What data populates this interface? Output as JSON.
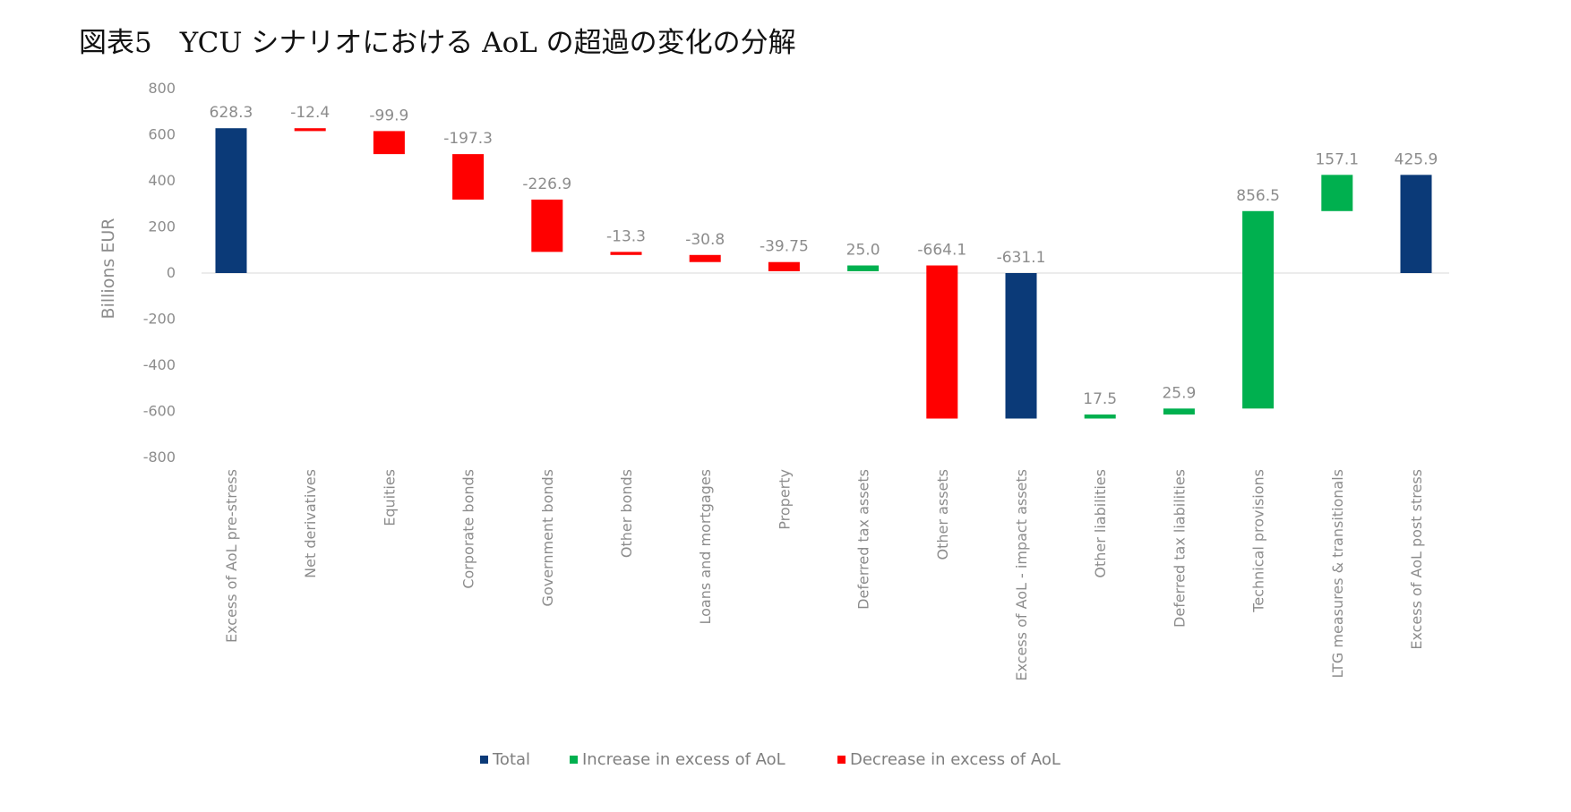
{
  "title": "図表5　YCU シナリオにおける AoL の超過の変化の分解",
  "colors": {
    "total": "#0b3a78",
    "increase": "#00b04f",
    "decrease": "#ff0000",
    "axis_text": "#8c8c8c",
    "zero_line": "#e6e6e6"
  },
  "chart_data": {
    "type": "bar",
    "subtype": "waterfall",
    "ylabel": "Billions EUR",
    "xlabel": "",
    "ylim": [
      -800,
      800
    ],
    "yticks": [
      800,
      600,
      400,
      200,
      0,
      -200,
      -400,
      -600,
      -800
    ],
    "grid": false,
    "legend_position": "bottom",
    "legend": [
      {
        "key": "total",
        "label": "Total"
      },
      {
        "key": "increase",
        "label": "Increase in excess of AoL"
      },
      {
        "key": "decrease",
        "label": "Decrease in excess of AoL"
      }
    ],
    "categories": [
      "Excess of AoL pre-stress",
      "Net derivatives",
      "Equities",
      "Corporate bonds",
      "Government bonds",
      "Other bonds",
      "Loans and mortgages",
      "Property",
      "Deferred tax assets",
      "Other assets",
      "Excess of AoL - impact assets",
      "Other liabilities",
      "Deferred tax liabilities",
      "Technical provisions",
      "LTG measures & transitionals",
      "Excess of AoL post stress"
    ],
    "values": [
      628.3,
      -12.4,
      -99.9,
      -197.3,
      -226.9,
      -13.3,
      -30.8,
      -39.75,
      25.0,
      -664.1,
      -631.1,
      17.5,
      25.9,
      856.5,
      157.1,
      425.9
    ],
    "labels": [
      "628.3",
      "-12.4",
      "-99.9",
      "-197.3",
      "-226.9",
      "-13.3",
      "-30.8",
      "-39.75",
      "25.0",
      "-664.1",
      "-631.1",
      "17.5",
      "25.9",
      "856.5",
      "157.1",
      "425.9"
    ],
    "bar_types": [
      "total",
      "decrease",
      "decrease",
      "decrease",
      "decrease",
      "decrease",
      "decrease",
      "decrease",
      "increase",
      "decrease",
      "total",
      "increase",
      "increase",
      "increase",
      "increase",
      "total"
    ]
  }
}
